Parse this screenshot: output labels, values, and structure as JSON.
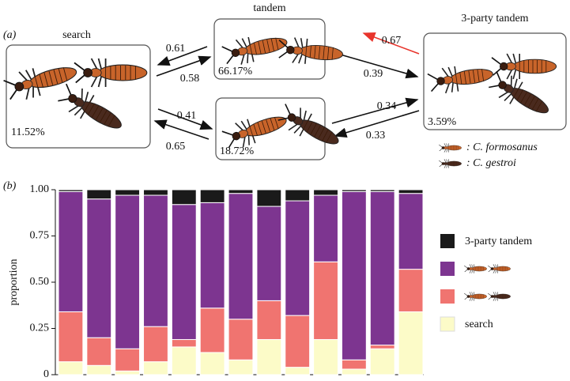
{
  "panel_a_label": "(a)",
  "diagram": {
    "nodes": [
      {
        "label": "search",
        "percent": "11.52%"
      },
      {
        "label": "tandem",
        "percent": "66.17%"
      },
      {
        "percent": "18.72%"
      },
      {
        "label": "3-party tandem",
        "percent": "3.59%"
      }
    ],
    "edges": [
      "0.61",
      "0.58",
      "0.41",
      "0.65",
      "0.67",
      "0.39",
      "0.34",
      "0.33"
    ],
    "legend": [
      ": C. formosanus",
      ": C. gestroi"
    ]
  },
  "panel_b_label": "(b)",
  "chart_data": {
    "type": "stacked_bar",
    "y_label": "proportion",
    "categories": [
      null,
      null,
      null,
      null,
      null,
      null,
      null,
      null,
      null,
      null,
      null,
      null,
      null
    ],
    "ylim": [
      0,
      1
    ],
    "yticks": [
      0,
      0.25,
      {
        "value": 0.5,
        "label": "0.50"
      },
      0.75,
      {
        "value": 1,
        "label": "1.00"
      }
    ],
    "series": [
      {
        "name": "search",
        "color": "#fcfbc8",
        "values": [
          0.07,
          0.05,
          0.02,
          0.07,
          0.15,
          0.12,
          0.08,
          0.19,
          0.04,
          0.19,
          0.03,
          0.14,
          0.34
        ]
      },
      {
        "color": "#f07470",
        "values": [
          0.27,
          0.15,
          0.12,
          0.19,
          0.04,
          0.24,
          0.22,
          0.21,
          0.28,
          0.42,
          0.05,
          0.02,
          0.23
        ]
      },
      {
        "color": "#7d3590",
        "values": [
          0.65,
          0.75,
          0.83,
          0.71,
          0.73,
          0.57,
          0.68,
          0.51,
          0.62,
          0.36,
          0.91,
          0.83,
          0.41
        ]
      },
      {
        "name": "3-party tandem",
        "color": "#1a1a1a",
        "values": [
          0.01,
          0.05,
          0.03,
          0.03,
          0.08,
          0.07,
          0.02,
          0.09,
          0.06,
          0.03,
          0.01,
          0.01,
          0.02
        ]
      }
    ]
  }
}
